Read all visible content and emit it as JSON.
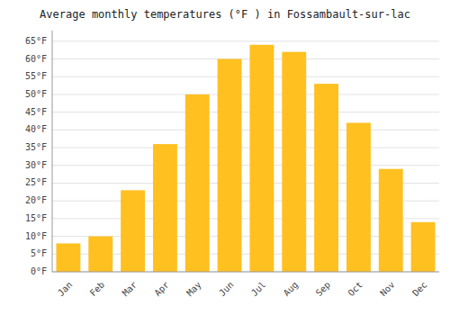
{
  "chart_data": {
    "type": "bar",
    "title": "Average monthly temperatures (°F ) in Fossambault-sur-lac",
    "categories": [
      "Jan",
      "Feb",
      "Mar",
      "Apr",
      "May",
      "Jun",
      "Jul",
      "Aug",
      "Sep",
      "Oct",
      "Nov",
      "Dec"
    ],
    "values": [
      8,
      10,
      23,
      36,
      50,
      60,
      64,
      62,
      53,
      42,
      29,
      14
    ],
    "color": "#FFC020",
    "ylim": [
      0,
      68
    ],
    "yticks": [
      {
        "value": 0,
        "label": "0°F"
      },
      {
        "value": 5,
        "label": "5°F"
      },
      {
        "value": 10,
        "label": "10°F"
      },
      {
        "value": 15,
        "label": "15°F"
      },
      {
        "value": 20,
        "label": "20°F"
      },
      {
        "value": 25,
        "label": "25°F"
      },
      {
        "value": 30,
        "label": "30°F"
      },
      {
        "value": 35,
        "label": "35°F"
      },
      {
        "value": 40,
        "label": "40°F"
      },
      {
        "value": 45,
        "label": "45°F"
      },
      {
        "value": 50,
        "label": "50°F"
      },
      {
        "value": 55,
        "label": "55°F"
      },
      {
        "value": 60,
        "label": "60°F"
      },
      {
        "value": 65,
        "label": "65°F"
      }
    ],
    "grid": true
  }
}
